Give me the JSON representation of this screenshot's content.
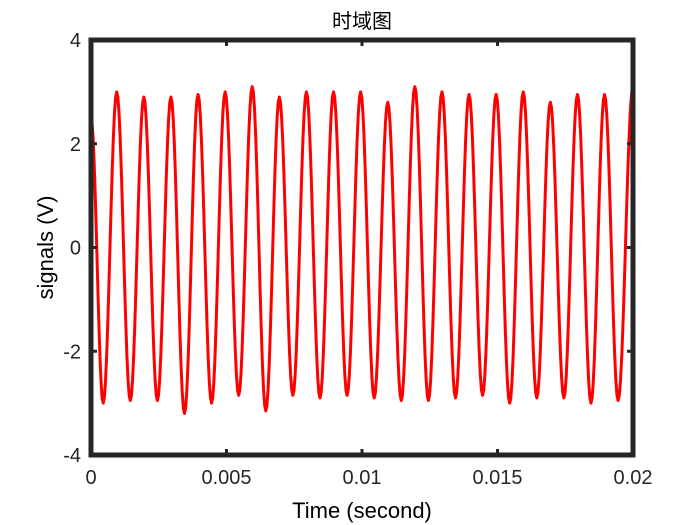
{
  "chart_data": {
    "type": "line",
    "title": "时域图",
    "xlabel": "Time (second)",
    "ylabel": "signals (V)",
    "xlim": [
      0,
      0.02
    ],
    "ylim": [
      -4,
      4
    ],
    "xticks": [
      0,
      0.005,
      0.01,
      0.015,
      0.02
    ],
    "xtick_labels": [
      "0",
      "0.005",
      "0.01",
      "0.015",
      "0.02"
    ],
    "yticks": [
      -4,
      -2,
      0,
      2,
      4
    ],
    "ytick_labels": [
      "-4",
      "-2",
      "0",
      "2",
      "4"
    ],
    "grid": false,
    "legend": false,
    "line_color": "#ff0000",
    "series": [
      {
        "frequency_hz": 1000,
        "amplitude_v": 3.0,
        "peak_x": [
          0.00095,
          0.00195,
          0.00295,
          0.00395,
          0.00495,
          0.00595,
          0.00695,
          0.00795,
          0.00895,
          0.00995,
          0.01095,
          0.01195,
          0.01295,
          0.01395,
          0.01495,
          0.01595,
          0.01695,
          0.01795,
          0.01895,
          0.02
        ],
        "peaks_y": [
          3.0,
          2.9,
          2.9,
          2.95,
          3.0,
          3.1,
          2.9,
          3.0,
          3.0,
          3.0,
          2.8,
          3.1,
          3.0,
          2.95,
          2.95,
          3.0,
          2.8,
          2.95,
          2.95,
          3.1
        ],
        "trough_x": [
          0.00045,
          0.00145,
          0.00245,
          0.00345,
          0.00445,
          0.00545,
          0.00645,
          0.00745,
          0.00845,
          0.00945,
          0.01045,
          0.01145,
          0.01245,
          0.01345,
          0.01445,
          0.01545,
          0.01645,
          0.01745,
          0.01845,
          0.01945
        ],
        "troughs_y": [
          -3.0,
          -2.95,
          -2.95,
          -3.2,
          -3.0,
          -2.85,
          -3.15,
          -2.85,
          -2.9,
          -2.85,
          -2.9,
          -2.95,
          -2.95,
          -2.9,
          -2.85,
          -3.0,
          -2.9,
          -2.9,
          -3.0,
          -2.95
        ],
        "start_y": 2.5
      }
    ]
  }
}
